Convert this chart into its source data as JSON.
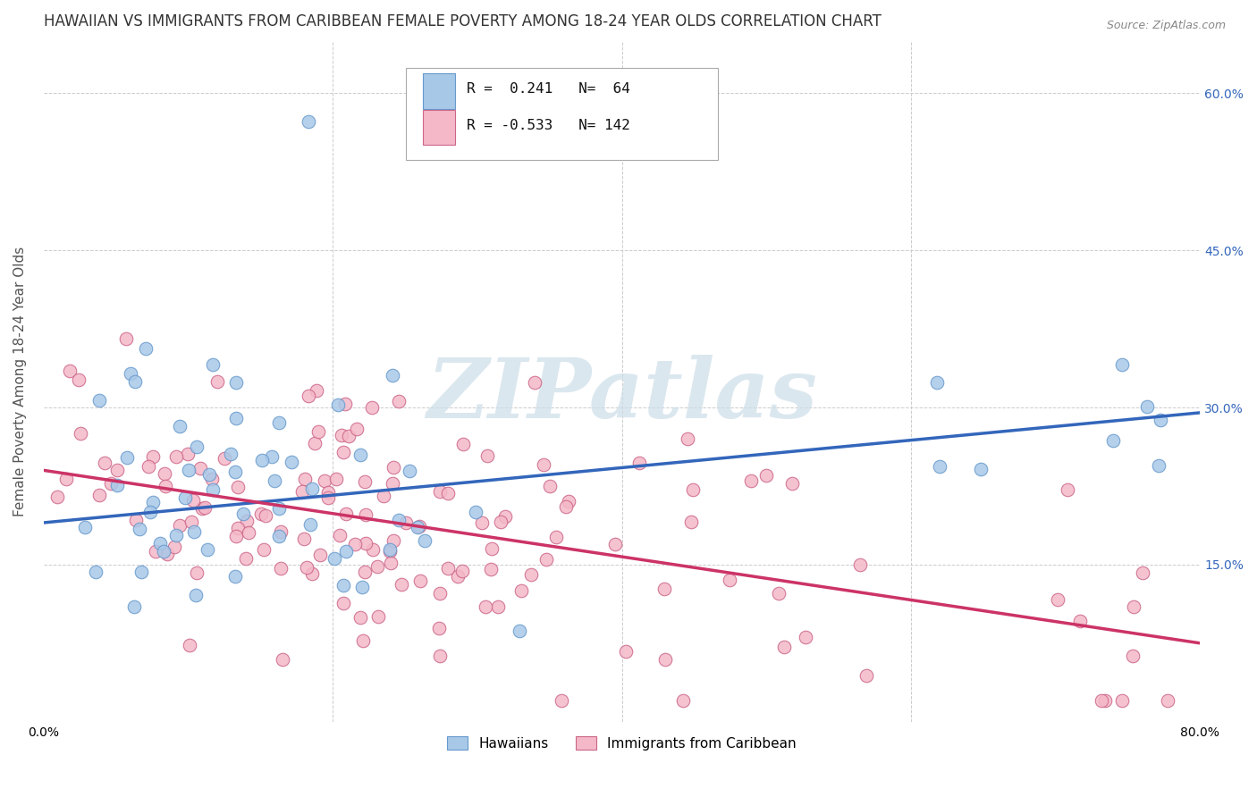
{
  "title": "HAWAIIAN VS IMMIGRANTS FROM CARIBBEAN FEMALE POVERTY AMONG 18-24 YEAR OLDS CORRELATION CHART",
  "source": "Source: ZipAtlas.com",
  "ylabel": "Female Poverty Among 18-24 Year Olds",
  "ytick_labels": [
    "",
    "15.0%",
    "30.0%",
    "45.0%",
    "60.0%"
  ],
  "ytick_positions": [
    0.0,
    0.15,
    0.3,
    0.45,
    0.6
  ],
  "xtick_positions": [
    0.0,
    0.2,
    0.4,
    0.6,
    0.8
  ],
  "xmin": 0.0,
  "xmax": 0.8,
  "ymin": 0.0,
  "ymax": 0.65,
  "hawaiian_color": "#a8c8e8",
  "hawaiian_edge": "#6699cc",
  "caribbean_color": "#f4b8c8",
  "caribbean_edge": "#cc6688",
  "blue_line_color": "#3366bb",
  "pink_line_color": "#cc3366",
  "legend_label1": "Hawaiians",
  "legend_label2": "Immigrants from Caribbean",
  "watermark_text": "ZIPatlas",
  "watermark_color": "#ccdde8",
  "background_color": "#ffffff",
  "grid_color": "#cccccc",
  "title_color": "#333333",
  "axis_label_color": "#555555",
  "right_tick_color": "#3366bb",
  "blue_line_y0": 0.19,
  "blue_line_y1": 0.295,
  "pink_line_y0": 0.24,
  "pink_line_y1": 0.075,
  "hawaiian_seed": 42,
  "caribbean_seed": 77,
  "n_hawaiian": 64,
  "n_caribbean": 142
}
